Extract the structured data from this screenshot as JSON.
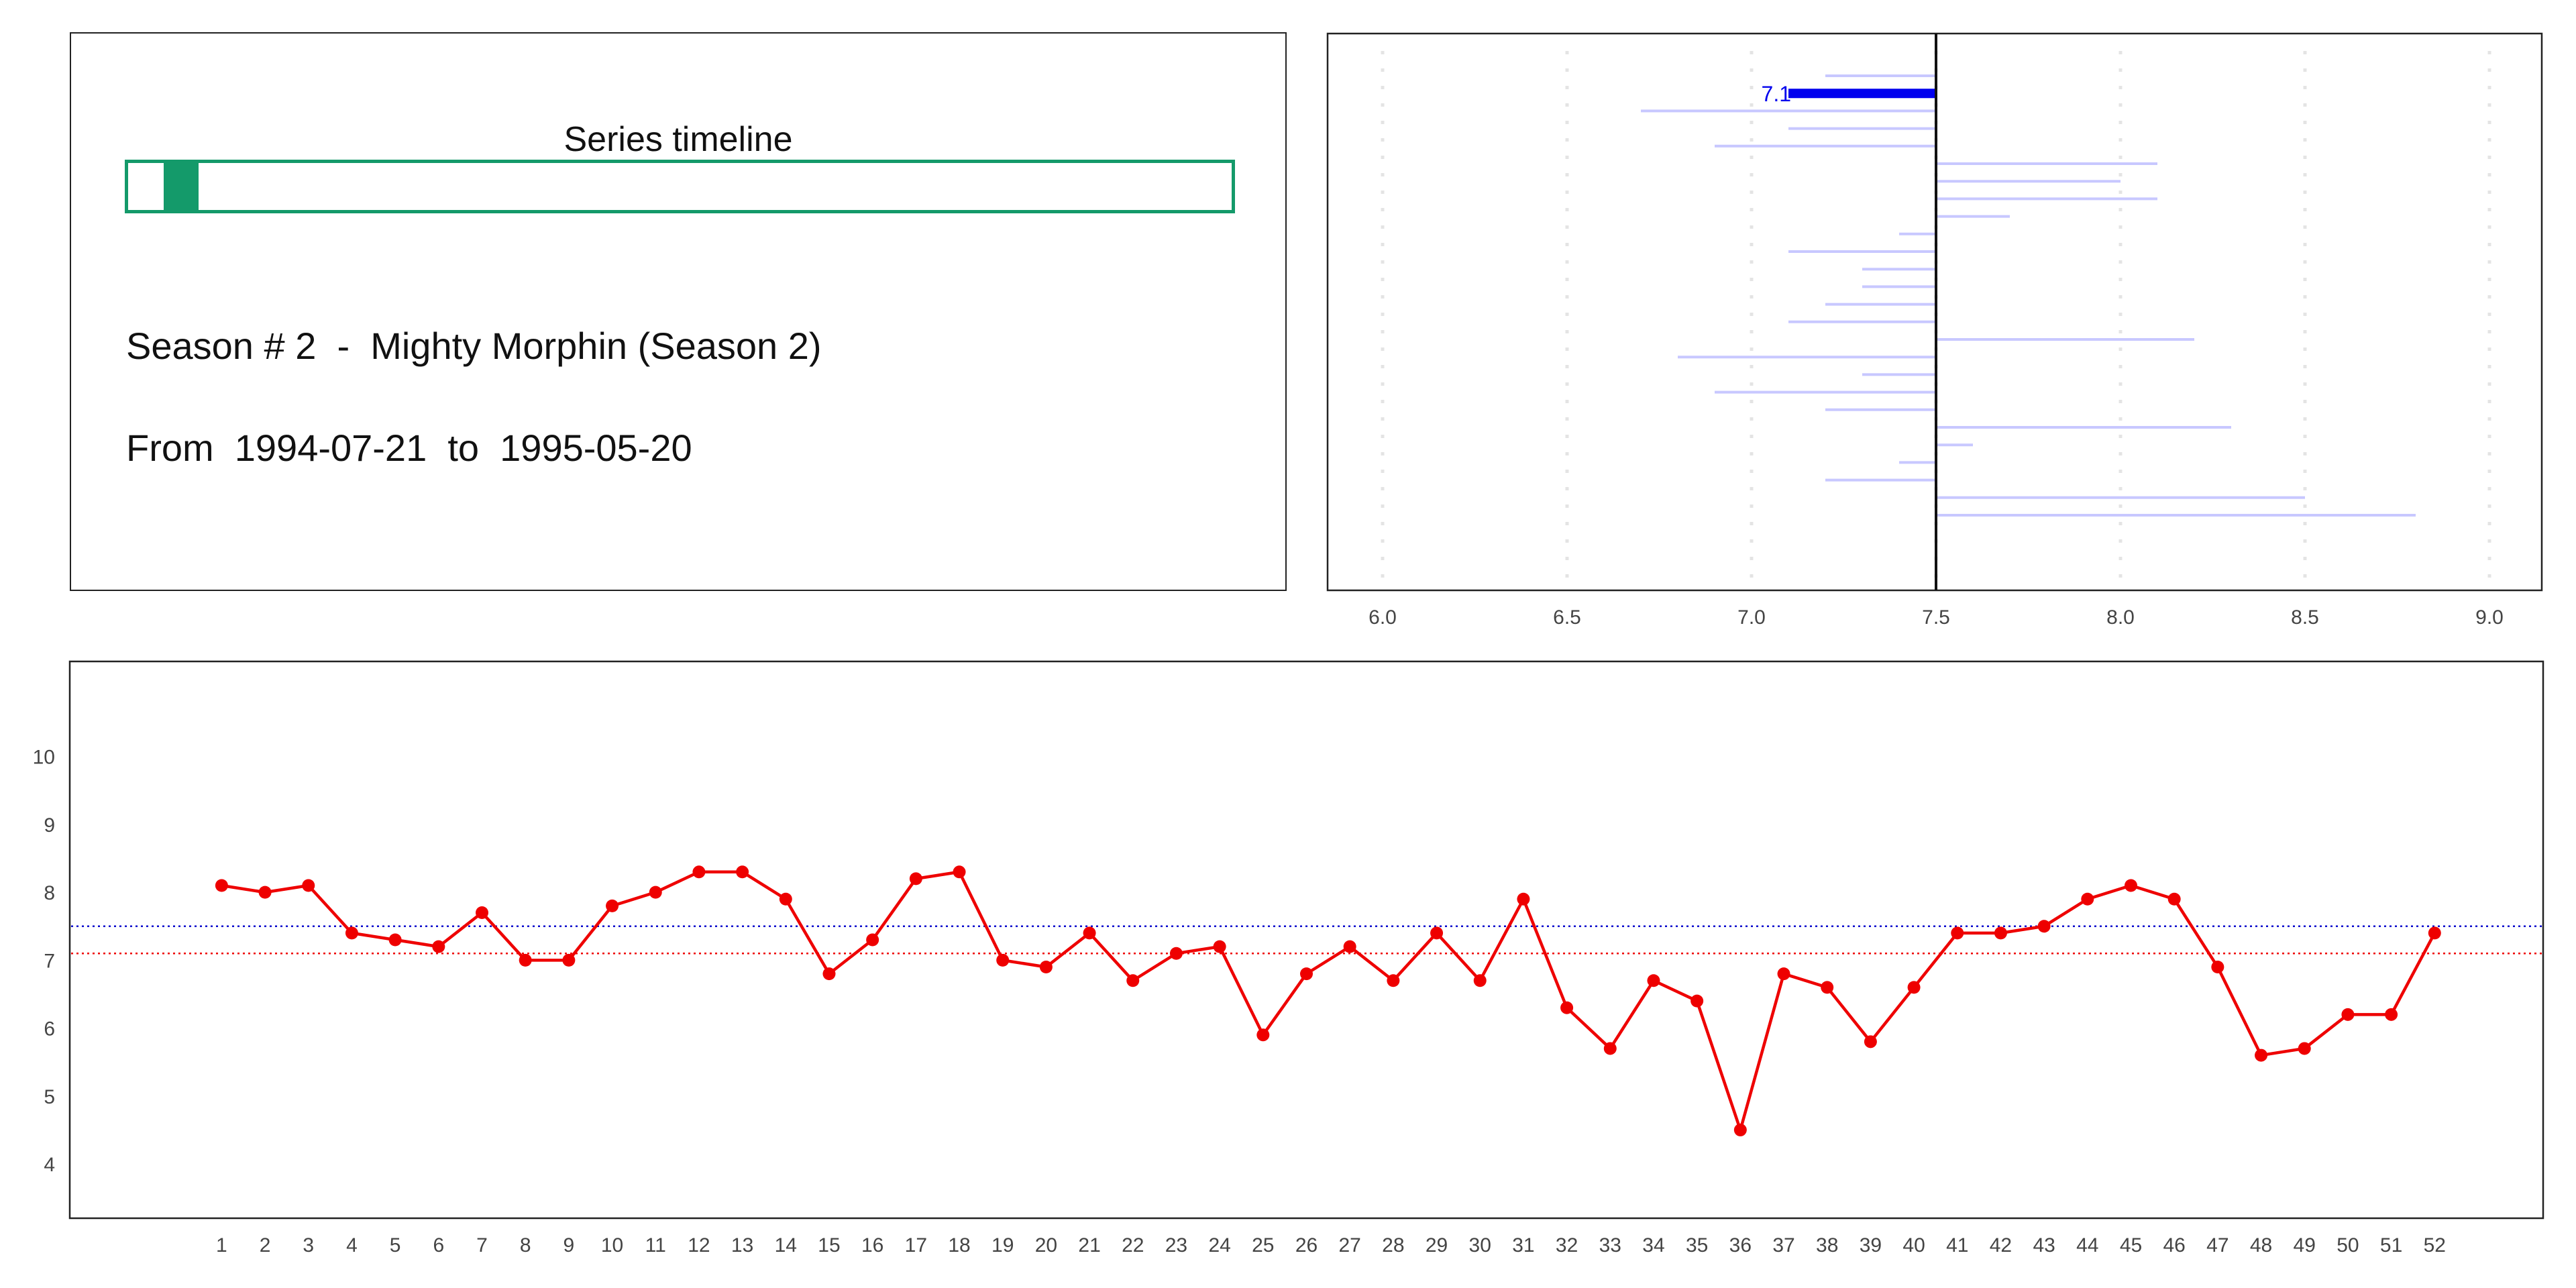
{
  "timeline": {
    "title": "Series timeline",
    "season_label": "Season # 2  -  Mighty Morphin (Season 2)",
    "dates_label": "From  1994-07-21  to  1995-05-20",
    "bar_color": "#149a6a",
    "season_start_fraction": 0.032,
    "season_end_fraction": 0.064
  },
  "chart_data": [
    {
      "type": "bar",
      "orientation": "horizontal",
      "baseline": 7.5,
      "xlim": [
        6.0,
        9.0
      ],
      "xticks": [
        "6.0",
        "6.5",
        "7.0",
        "7.5",
        "8.0",
        "8.5",
        "9.0"
      ],
      "values": [
        7.2,
        7.1,
        6.7,
        7.1,
        6.9,
        8.1,
        8.0,
        8.1,
        7.7,
        7.4,
        7.1,
        7.3,
        7.3,
        7.2,
        7.1,
        8.2,
        6.8,
        7.3,
        6.9,
        7.2,
        8.3,
        7.6,
        7.4,
        7.2,
        8.5,
        8.8
      ],
      "highlight_index": 1,
      "highlight_label": "7.1",
      "bar_color": "#c8c8ff",
      "highlight_color": "#0000ee",
      "grid": true
    },
    {
      "type": "line",
      "x": [
        1,
        2,
        3,
        4,
        5,
        6,
        7,
        8,
        9,
        10,
        11,
        12,
        13,
        14,
        15,
        16,
        17,
        18,
        19,
        20,
        21,
        22,
        23,
        24,
        25,
        26,
        27,
        28,
        29,
        30,
        31,
        32,
        33,
        34,
        35,
        36,
        37,
        38,
        39,
        40,
        41,
        42,
        43,
        44,
        45,
        46,
        47,
        48,
        49,
        50,
        51,
        52
      ],
      "y": [
        8.1,
        8.0,
        8.1,
        7.4,
        7.3,
        7.2,
        7.7,
        7.0,
        7.0,
        7.8,
        8.0,
        8.3,
        8.3,
        7.9,
        6.8,
        7.3,
        8.2,
        8.3,
        7.0,
        6.9,
        7.4,
        6.7,
        7.1,
        7.2,
        5.9,
        6.8,
        7.2,
        6.7,
        7.4,
        6.7,
        7.9,
        6.3,
        5.7,
        6.7,
        6.4,
        4.5,
        6.8,
        6.6,
        5.8,
        6.6,
        7.4,
        7.4,
        7.5,
        7.9,
        8.1,
        7.9,
        6.9,
        5.6,
        5.7,
        6.2,
        6.2,
        7.4
      ],
      "xlim": [
        -2.5,
        54.5
      ],
      "ylim": [
        3.2,
        11.4
      ],
      "yticks": [
        4,
        5,
        6,
        7,
        8,
        9,
        10
      ],
      "reference_lines": [
        {
          "value": 7.5,
          "color": "#0000cc",
          "style": "dotted"
        },
        {
          "value": 7.1,
          "color": "#ee0000",
          "style": "dotted"
        }
      ],
      "line_color": "#ee0000",
      "grid": false
    }
  ]
}
